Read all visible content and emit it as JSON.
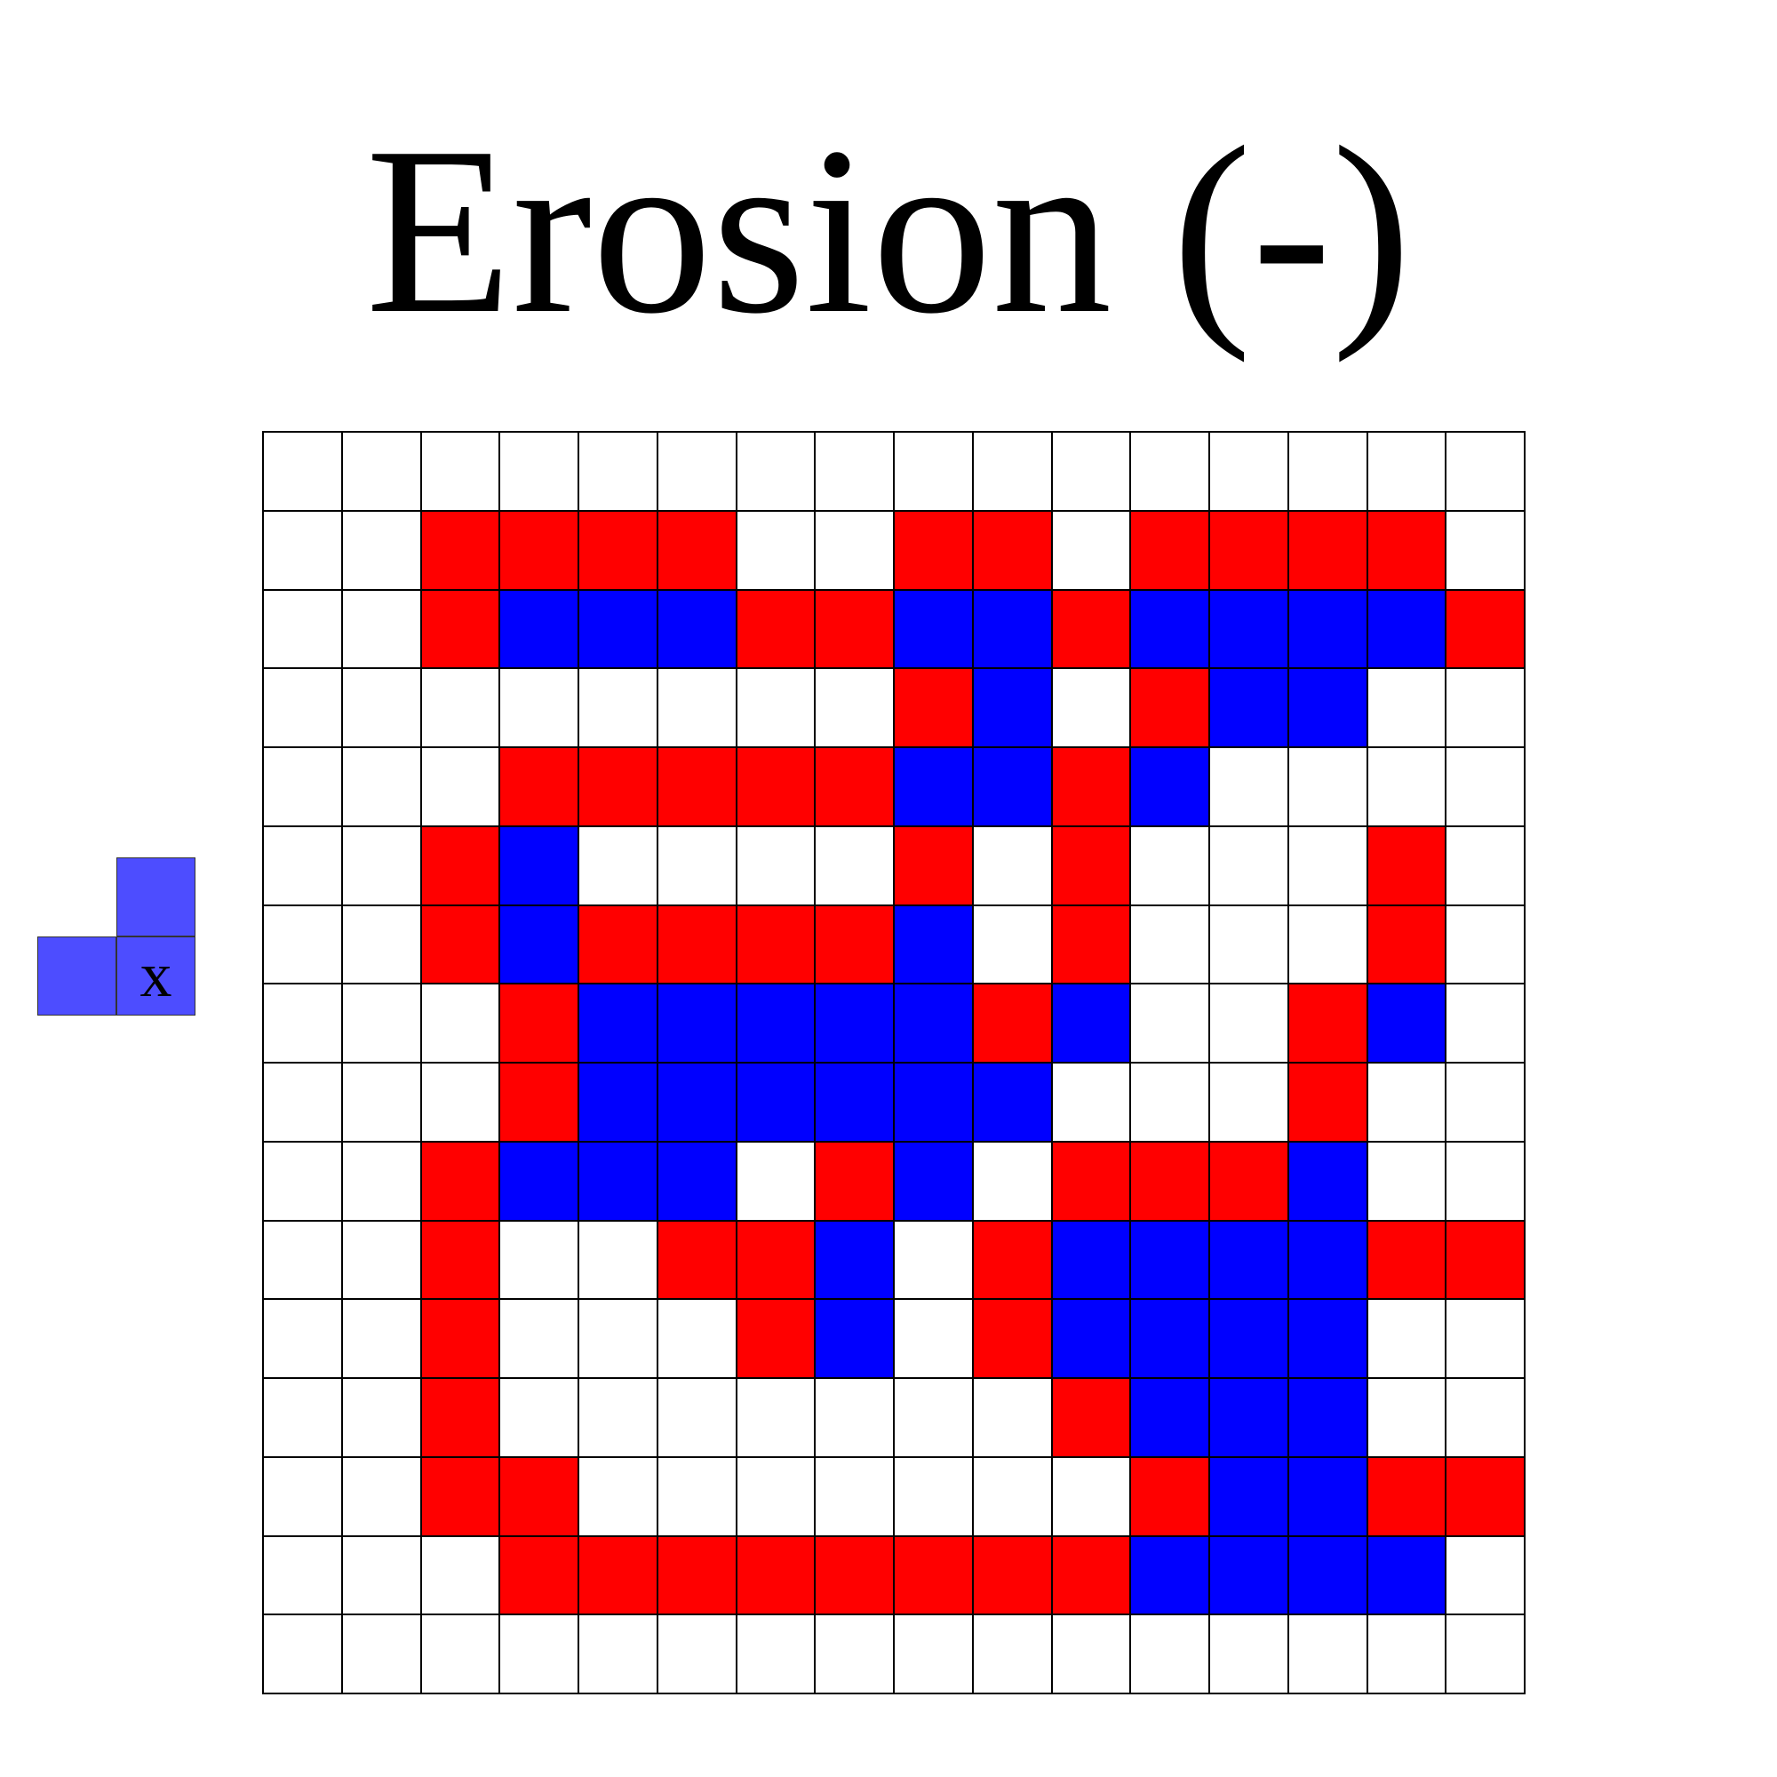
{
  "title": "Erosion (-)",
  "colors": {
    "empty": "#ffffff",
    "removed": "#ff0000",
    "kept": "#0000ff",
    "structuring_element": "#4d4dff",
    "grid_line": "#000000"
  },
  "legend_codes": {
    "0": "empty",
    "1": "removed",
    "2": "kept"
  },
  "grid": {
    "rows": 16,
    "cols": 16,
    "cells": [
      [
        0,
        0,
        0,
        0,
        0,
        0,
        0,
        0,
        0,
        0,
        0,
        0,
        0,
        0,
        0,
        0
      ],
      [
        0,
        0,
        1,
        1,
        1,
        1,
        0,
        0,
        1,
        1,
        0,
        1,
        1,
        1,
        1,
        0
      ],
      [
        0,
        0,
        1,
        2,
        2,
        2,
        1,
        1,
        2,
        2,
        1,
        2,
        2,
        2,
        2,
        1
      ],
      [
        0,
        0,
        0,
        0,
        0,
        0,
        0,
        0,
        1,
        2,
        0,
        1,
        2,
        2,
        0,
        0
      ],
      [
        0,
        0,
        0,
        1,
        1,
        1,
        1,
        1,
        2,
        2,
        1,
        2,
        0,
        0,
        0,
        0
      ],
      [
        0,
        0,
        1,
        2,
        0,
        0,
        0,
        0,
        1,
        0,
        1,
        0,
        0,
        0,
        1,
        0
      ],
      [
        0,
        0,
        1,
        2,
        1,
        1,
        1,
        1,
        2,
        0,
        1,
        0,
        0,
        0,
        1,
        0
      ],
      [
        0,
        0,
        0,
        1,
        2,
        2,
        2,
        2,
        2,
        1,
        2,
        0,
        0,
        1,
        2,
        0
      ],
      [
        0,
        0,
        0,
        1,
        2,
        2,
        2,
        2,
        2,
        2,
        0,
        0,
        0,
        1,
        0,
        0
      ],
      [
        0,
        0,
        1,
        2,
        2,
        2,
        0,
        1,
        2,
        0,
        1,
        1,
        1,
        2,
        0,
        0
      ],
      [
        0,
        0,
        1,
        0,
        0,
        1,
        1,
        2,
        0,
        1,
        2,
        2,
        2,
        2,
        1,
        1
      ],
      [
        0,
        0,
        1,
        0,
        0,
        0,
        1,
        2,
        0,
        1,
        2,
        2,
        2,
        2,
        0,
        0
      ],
      [
        0,
        0,
        1,
        0,
        0,
        0,
        0,
        0,
        0,
        0,
        1,
        2,
        2,
        2,
        0,
        0
      ],
      [
        0,
        0,
        1,
        1,
        0,
        0,
        0,
        0,
        0,
        0,
        0,
        1,
        2,
        2,
        1,
        1
      ],
      [
        0,
        0,
        0,
        1,
        1,
        1,
        1,
        1,
        1,
        1,
        1,
        2,
        2,
        2,
        2,
        0
      ],
      [
        0,
        0,
        0,
        0,
        0,
        0,
        0,
        0,
        0,
        0,
        0,
        0,
        0,
        0,
        0,
        0
      ]
    ]
  },
  "structuring_element": {
    "cells": [
      {
        "row": 0,
        "col": 1,
        "label": ""
      },
      {
        "row": 1,
        "col": 0,
        "label": ""
      },
      {
        "row": 1,
        "col": 1,
        "label": "x"
      }
    ]
  }
}
